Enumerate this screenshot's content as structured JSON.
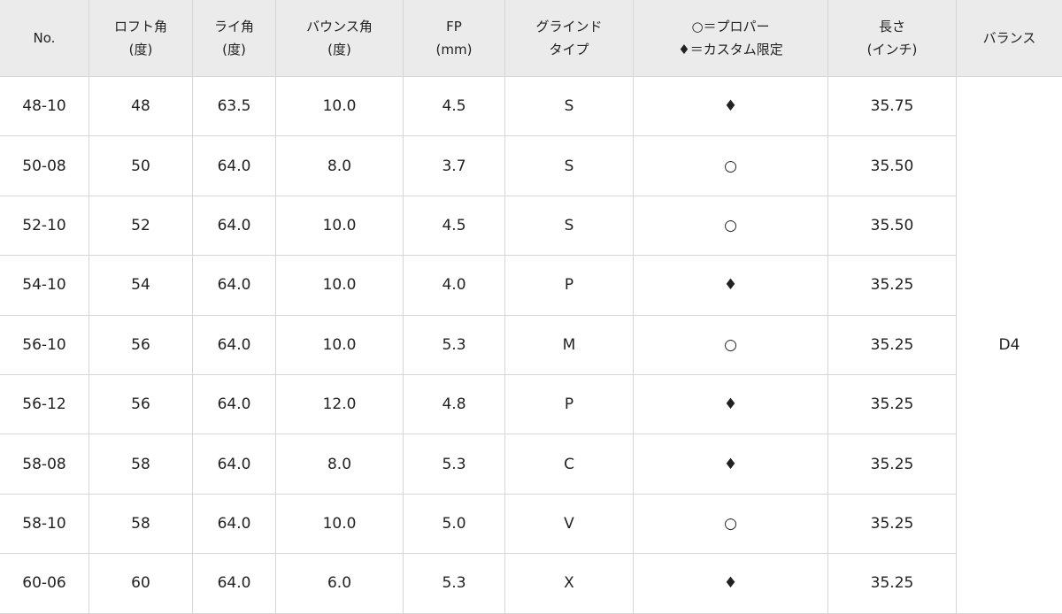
{
  "headers": [
    [
      "No."
    ],
    [
      "ロフト角",
      "(度)"
    ],
    [
      "ライ角",
      "(度)"
    ],
    [
      "バウンス角",
      "(度)"
    ],
    [
      "FP",
      "(mm)"
    ],
    [
      "グラインド",
      "タイプ"
    ],
    [
      "○＝プロパー",
      "♦＝カスタム限定"
    ],
    [
      "長さ",
      "(インチ)"
    ],
    [
      "バランス"
    ]
  ],
  "rows": [
    [
      "48-10",
      "48",
      "63.5",
      "10.0",
      "4.5",
      "S",
      "♦",
      "35.75"
    ],
    [
      "50-08",
      "50",
      "64.0",
      "8.0",
      "3.7",
      "S",
      "○",
      "35.50"
    ],
    [
      "52-10",
      "52",
      "64.0",
      "10.0",
      "4.5",
      "S",
      "○",
      "35.50"
    ],
    [
      "54-10",
      "54",
      "64.0",
      "10.0",
      "4.0",
      "P",
      "♦",
      "35.25"
    ],
    [
      "56-10",
      "56",
      "64.0",
      "10.0",
      "5.3",
      "M",
      "○",
      "35.25"
    ],
    [
      "56-12",
      "56",
      "64.0",
      "12.0",
      "4.8",
      "P",
      "♦",
      "35.25"
    ],
    [
      "58-08",
      "58",
      "64.0",
      "8.0",
      "5.3",
      "C",
      "♦",
      "35.25"
    ],
    [
      "58-10",
      "58",
      "64.0",
      "10.0",
      "5.0",
      "V",
      "○",
      "35.25"
    ],
    [
      "60-06",
      "60",
      "64.0",
      "6.0",
      "5.3",
      "X",
      "♦",
      "35.25"
    ]
  ],
  "balance": "D4"
}
